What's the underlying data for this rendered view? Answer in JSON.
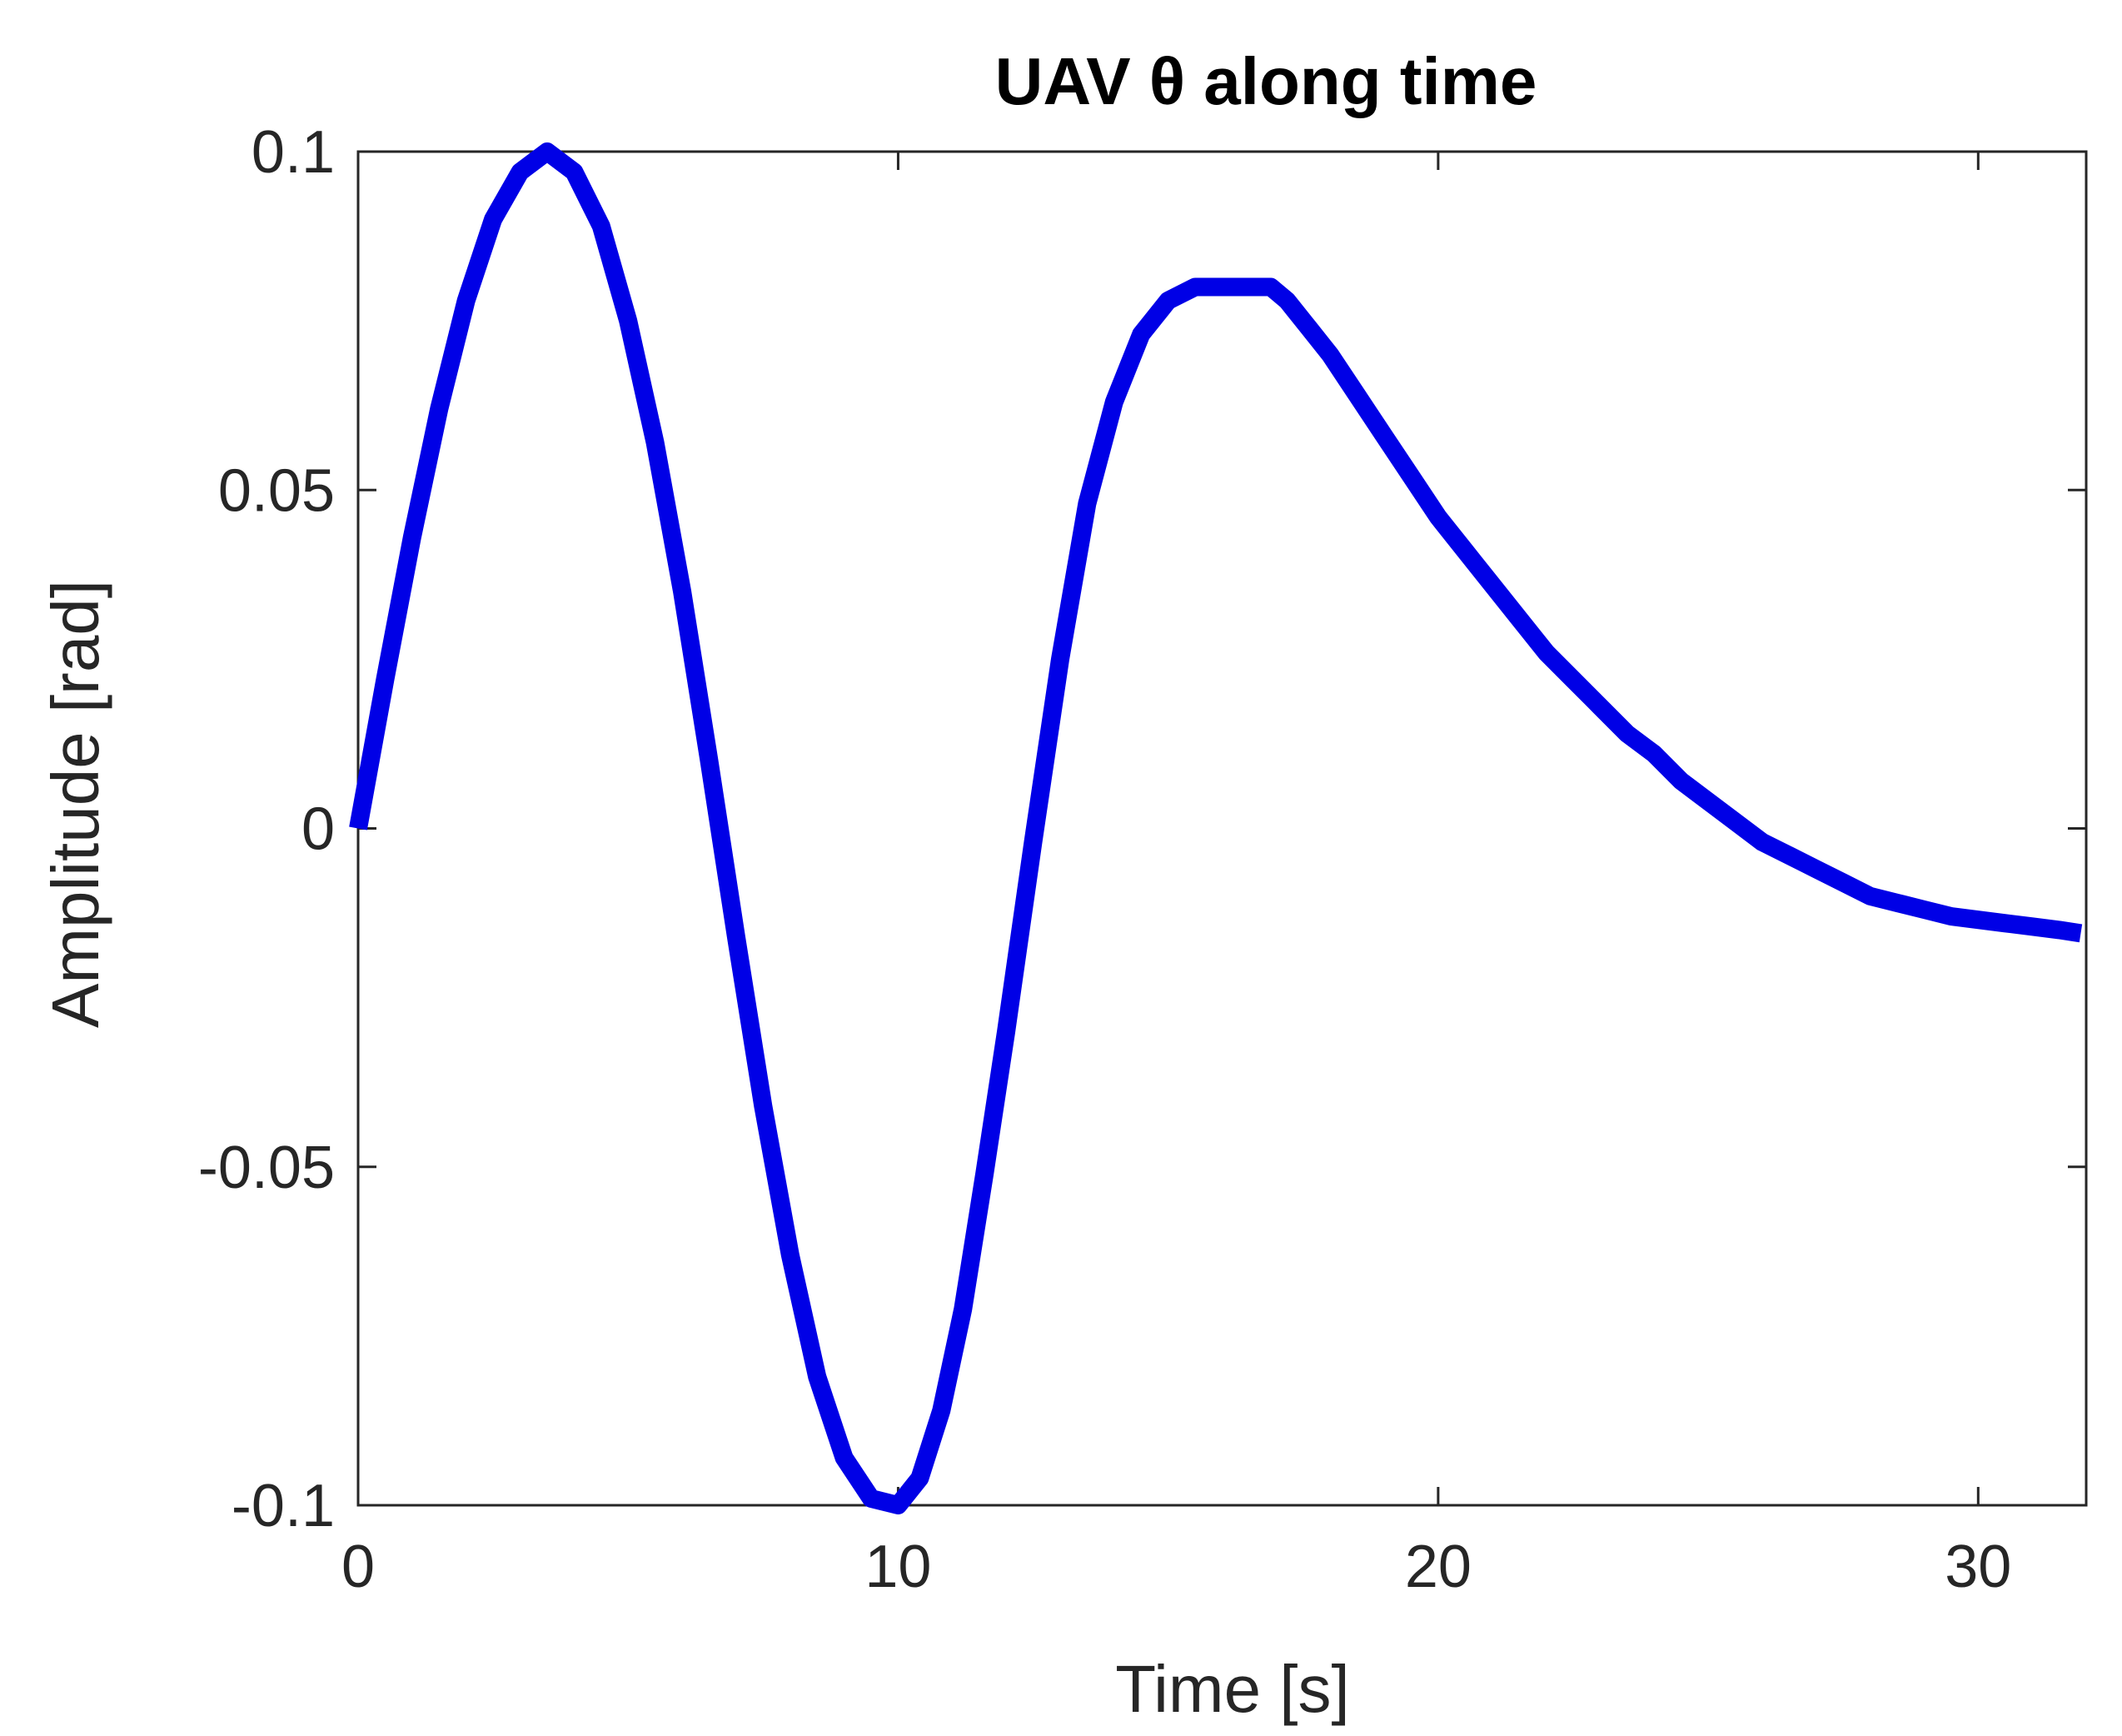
{
  "chart_data": {
    "type": "line",
    "title": "UAV  θ  along time",
    "xlabel": "Time [s]",
    "ylabel": "Amplitude [rad]",
    "xlim": [
      0,
      32
    ],
    "ylim": [
      -0.1,
      0.1
    ],
    "x_ticks": [
      0,
      10,
      20,
      30
    ],
    "x_tick_labels": [
      "0",
      "10",
      "20",
      "30"
    ],
    "y_ticks": [
      -0.1,
      -0.05,
      0,
      0.05,
      0.1
    ],
    "y_tick_labels": [
      "-0.1",
      "-0.05",
      "0",
      "0.05",
      "0.1"
    ],
    "grid": false,
    "box": true,
    "series": [
      {
        "color": "#0000E6",
        "x": [
          0,
          0.5,
          1,
          1.5,
          2,
          2.5,
          3,
          3.5,
          4,
          4.5,
          5,
          5.5,
          6,
          6.5,
          7,
          7.5,
          8,
          8.5,
          9,
          9.5,
          10,
          10.4,
          10.8,
          11.2,
          11.6,
          12,
          12.5,
          13,
          13.5,
          14,
          14.5,
          15,
          15.5,
          16,
          16.5,
          16.9,
          17.2,
          17.6,
          18,
          18.5,
          19,
          19.5,
          20,
          20.5,
          21,
          21.5,
          22,
          22.5,
          23,
          23.5,
          24,
          24.5,
          25,
          25.5,
          26,
          26.5,
          27,
          27.5,
          28,
          28.5,
          29,
          29.5,
          30,
          30.5,
          31,
          31.5,
          31.9
        ],
        "y": [
          0,
          0.022,
          0.043,
          0.062,
          0.078,
          0.09,
          0.097,
          0.1,
          0.097,
          0.089,
          0.075,
          0.057,
          0.035,
          0.01,
          -0.016,
          -0.041,
          -0.063,
          -0.081,
          -0.093,
          -0.099,
          -0.1,
          -0.096,
          -0.086,
          -0.071,
          -0.051,
          -0.03,
          -0.002,
          0.025,
          0.048,
          0.063,
          0.073,
          0.078,
          0.08,
          0.08,
          0.08,
          0.08,
          0.078,
          0.074,
          0.07,
          0.064,
          0.058,
          0.052,
          0.046,
          0.041,
          0.036,
          0.031,
          0.026,
          0.022,
          0.018,
          0.014,
          0.011,
          0.007,
          0.004,
          0.001,
          -0.002,
          -0.004,
          -0.006,
          -0.008,
          -0.01,
          -0.011,
          -0.012,
          -0.013,
          -0.0135,
          -0.014,
          -0.0145,
          -0.015,
          -0.0155
        ]
      }
    ]
  }
}
